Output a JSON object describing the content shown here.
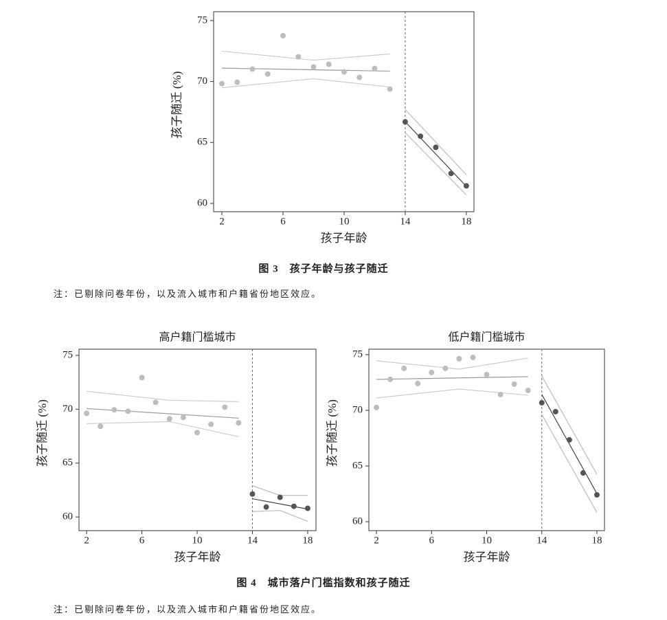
{
  "figures": [
    {
      "caption": "图 3　孩子年龄与孩子随迁",
      "note": "注：已剔除问卷年份，以及流入城市和户籍省份地区效应。"
    },
    {
      "caption": "图 4　城市落户门槛指数和孩子随迁",
      "note": "注：已剔除问卷年份，以及流入城市和户籍省份地区效应。"
    }
  ],
  "chart_data": [
    {
      "type": "scatter",
      "x_label": "孩子年龄",
      "y_label": "孩子随迁 (%)",
      "xlim": [
        1.46,
        18.5
      ],
      "ylim": [
        59.32,
        75.73
      ],
      "xticks": [
        2,
        6,
        10,
        14,
        18
      ],
      "yticks": [
        60,
        65,
        70,
        75
      ],
      "cutoff": 14,
      "series": [
        {
          "color": "#bdbdbd",
          "x": [
            2,
            3,
            4,
            5,
            6,
            7,
            8,
            9,
            10,
            11,
            12,
            13
          ],
          "values": [
            69.83,
            69.94,
            71.02,
            70.62,
            73.76,
            72.03,
            71.19,
            71.41,
            70.79,
            70.34,
            71.07,
            69.38
          ]
        },
        {
          "color": "#555555",
          "x": [
            14,
            15,
            16,
            17,
            18
          ],
          "values": [
            66.69,
            65.51,
            64.6,
            62.46,
            61.44
          ]
        }
      ],
      "lines": [
        {
          "color": "#999999",
          "x": [
            2,
            13
          ],
          "values": [
            71.1,
            70.85
          ]
        },
        {
          "color": "#cccccc",
          "x": [
            2,
            8,
            13
          ],
          "values": [
            72.49,
            71.75,
            72.26
          ]
        },
        {
          "color": "#cccccc",
          "x": [
            2,
            8,
            13
          ],
          "values": [
            69.49,
            70.23,
            69.55
          ]
        },
        {
          "color": "#444444",
          "x": [
            14,
            18
          ],
          "values": [
            66.7,
            61.4
          ]
        },
        {
          "color": "#bbbbbb",
          "x": [
            14,
            18
          ],
          "values": [
            67.7,
            62.35
          ]
        },
        {
          "color": "#bbbbbb",
          "x": [
            14,
            18
          ],
          "values": [
            65.8,
            60.7
          ]
        }
      ]
    },
    {
      "type": "scatter",
      "title": "高户籍门槛城市",
      "x_label": "孩子年龄",
      "y_label": "孩子随迁 (%)",
      "xlim": [
        1.45,
        18.6
      ],
      "ylim": [
        58.73,
        75.57
      ],
      "xticks": [
        2,
        6,
        10,
        14,
        18
      ],
      "yticks": [
        60,
        65,
        70,
        75
      ],
      "cutoff": 14,
      "series": [
        {
          "color": "#bdbdbd",
          "x": [
            2,
            3,
            4,
            5,
            6,
            7,
            8,
            9,
            10,
            11,
            12,
            13
          ],
          "values": [
            69.62,
            68.41,
            69.94,
            69.81,
            72.93,
            70.64,
            69.11,
            69.24,
            67.83,
            68.6,
            70.19,
            68.73
          ]
        },
        {
          "color": "#555555",
          "x": [
            14,
            15,
            16,
            17,
            18
          ],
          "values": [
            62.13,
            60.92,
            61.82,
            60.99,
            60.8
          ]
        }
      ],
      "lines": [
        {
          "color": "#999999",
          "x": [
            2,
            13
          ],
          "values": [
            70.06,
            69.17
          ]
        },
        {
          "color": "#cccccc",
          "x": [
            2,
            8,
            13
          ],
          "values": [
            71.66,
            70.83,
            70.7
          ]
        },
        {
          "color": "#cccccc",
          "x": [
            2,
            8,
            13
          ],
          "values": [
            68.66,
            68.85,
            67.45
          ]
        },
        {
          "color": "#444444",
          "x": [
            14,
            18
          ],
          "values": [
            61.69,
            60.73
          ]
        },
        {
          "color": "#bbbbbb",
          "x": [
            14,
            16,
            18
          ],
          "values": [
            62.9,
            62.0,
            62.0
          ]
        },
        {
          "color": "#bbbbbb",
          "x": [
            14,
            16,
            18
          ],
          "values": [
            60.5,
            60.6,
            59.6
          ]
        }
      ]
    },
    {
      "type": "scatter",
      "title": "低户籍门槛城市",
      "x_label": "孩子年龄",
      "y_label": "孩子随迁 (%)",
      "xlim": [
        1.45,
        18.55
      ],
      "ylim": [
        59.2,
        75.49
      ],
      "xticks": [
        2,
        6,
        10,
        14,
        18
      ],
      "yticks": [
        60,
        65,
        70,
        75
      ],
      "cutoff": 14,
      "series": [
        {
          "color": "#bdbdbd",
          "x": [
            2,
            3,
            4,
            5,
            6,
            7,
            8,
            9,
            10,
            11,
            12,
            13
          ],
          "values": [
            70.25,
            72.78,
            73.77,
            72.41,
            73.4,
            73.77,
            74.63,
            74.75,
            73.21,
            71.42,
            72.35,
            71.79
          ]
        },
        {
          "color": "#555555",
          "x": [
            14,
            15,
            16,
            17,
            18
          ],
          "values": [
            70.68,
            69.88,
            67.35,
            64.38,
            62.41
          ]
        }
      ],
      "lines": [
        {
          "color": "#999999",
          "x": [
            2,
            13
          ],
          "values": [
            72.78,
            73.02
          ]
        },
        {
          "color": "#cccccc",
          "x": [
            2,
            8,
            13
          ],
          "values": [
            74.44,
            73.7,
            74.69
          ]
        },
        {
          "color": "#cccccc",
          "x": [
            2,
            8,
            13
          ],
          "values": [
            71.11,
            71.91,
            71.36
          ]
        },
        {
          "color": "#444444",
          "x": [
            14,
            18
          ],
          "values": [
            71.42,
            62.53
          ]
        },
        {
          "color": "#bbbbbb",
          "x": [
            14,
            18
          ],
          "values": [
            73.09,
            64.26
          ]
        },
        {
          "color": "#bbbbbb",
          "x": [
            14,
            18
          ],
          "values": [
            69.63,
            60.83
          ]
        }
      ]
    }
  ]
}
